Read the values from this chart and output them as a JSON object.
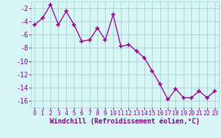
{
  "x": [
    0,
    1,
    2,
    3,
    4,
    5,
    6,
    7,
    8,
    9,
    10,
    11,
    12,
    13,
    14,
    15,
    16,
    17,
    18,
    19,
    20,
    21,
    22,
    23
  ],
  "y": [
    -4.5,
    -3.5,
    -1.5,
    -4.5,
    -2.5,
    -4.5,
    -7.0,
    -6.8,
    -5.0,
    -6.8,
    -3.0,
    -7.8,
    -7.5,
    -8.5,
    -9.5,
    -11.5,
    -13.5,
    -15.8,
    -14.2,
    -15.5,
    -15.5,
    -14.5,
    -15.5,
    -14.5
  ],
  "line_color": "#990099",
  "marker": "+",
  "bg_color": "#d6f5f5",
  "grid_color": "#aacccc",
  "xlabel": "Windchill (Refroidissement éolien,°C)",
  "ylim": [
    -17,
    -1
  ],
  "xlim": [
    -0.5,
    23.5
  ],
  "yticks": [
    -2,
    -4,
    -6,
    -8,
    -10,
    -12,
    -14,
    -16
  ],
  "xticks": [
    0,
    1,
    2,
    3,
    4,
    5,
    6,
    7,
    8,
    9,
    10,
    11,
    12,
    13,
    14,
    15,
    16,
    17,
    18,
    19,
    20,
    21,
    22,
    23
  ],
  "tick_color": "#880088",
  "xlabel_color": "#880088",
  "xlabel_fontsize": 7,
  "ytick_fontsize": 7,
  "xtick_fontsize": 6
}
